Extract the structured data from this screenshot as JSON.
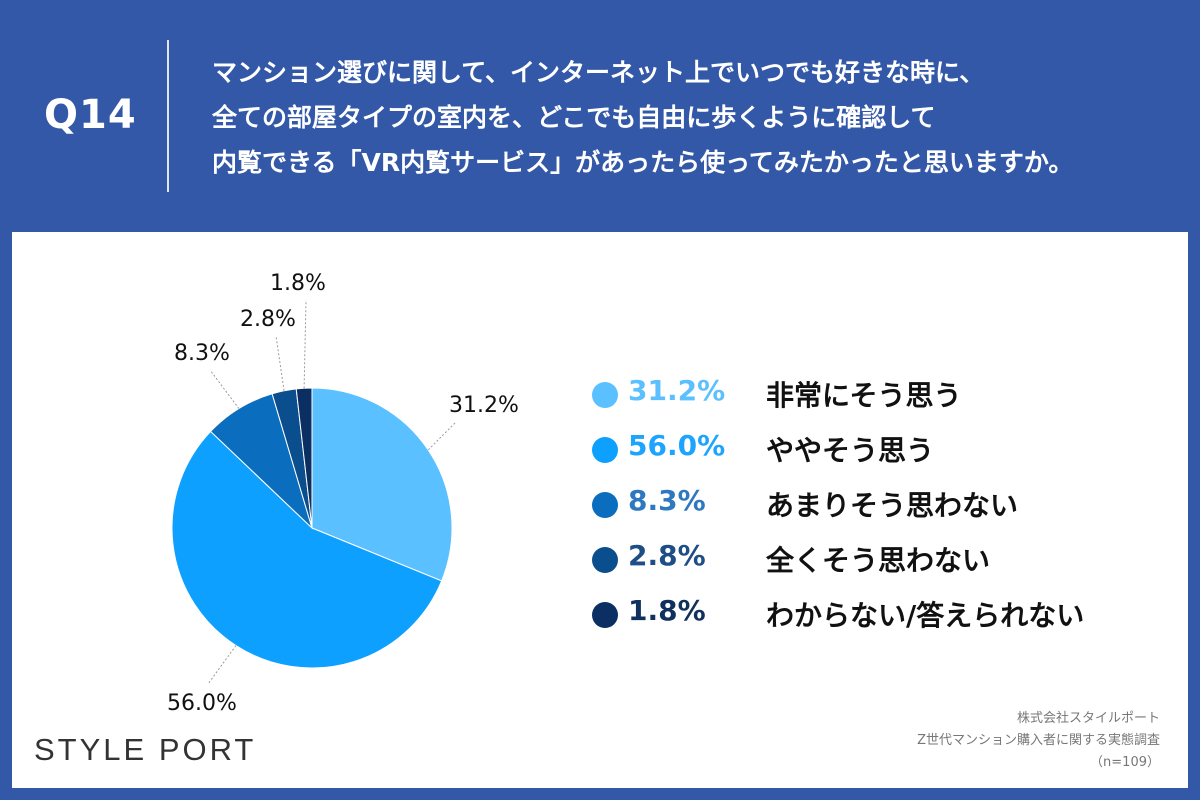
{
  "header": {
    "question_number": "Q14",
    "question_lines": [
      "マンション選びに関して、インターネット上でいつでも好きな時に、",
      "全ての部屋タイプの室内を、どこでも自由に歩くように確認して",
      "内覧できる「VR内覧サービス」があったら使ってみたかったと思いますか。"
    ]
  },
  "chart_data": {
    "type": "pie",
    "unit": "%",
    "start": "12 o'clock, clockwise",
    "slices": [
      {
        "label": "非常にそう思う",
        "value": 31.2,
        "value_label": "31.2%",
        "color": "#5BC0FF",
        "legend_text_color": "#5BC0FF"
      },
      {
        "label": "ややそう思う",
        "value": 56.0,
        "value_label": "56.0%",
        "color": "#0DA0FF",
        "legend_text_color": "#1DA4FF"
      },
      {
        "label": "あまりそう思わない",
        "value": 8.3,
        "value_label": "8.3%",
        "color": "#0A6DBD",
        "legend_text_color": "#2E78C0"
      },
      {
        "label": "全くそう思わない",
        "value": 2.8,
        "value_label": "2.8%",
        "color": "#0A4E8E",
        "legend_text_color": "#1E4E86"
      },
      {
        "label": "わからない/答えられない",
        "value": 1.8,
        "value_label": "1.8%",
        "color": "#0B2F63",
        "legend_text_color": "#10305E"
      }
    ],
    "legend_placement": "right"
  },
  "footer": {
    "logo_text": "STYLE PORT",
    "source_lines": [
      "株式会社スタイルポート",
      "Z世代マンション購入者に関する実態調査",
      "（n=109）"
    ]
  }
}
